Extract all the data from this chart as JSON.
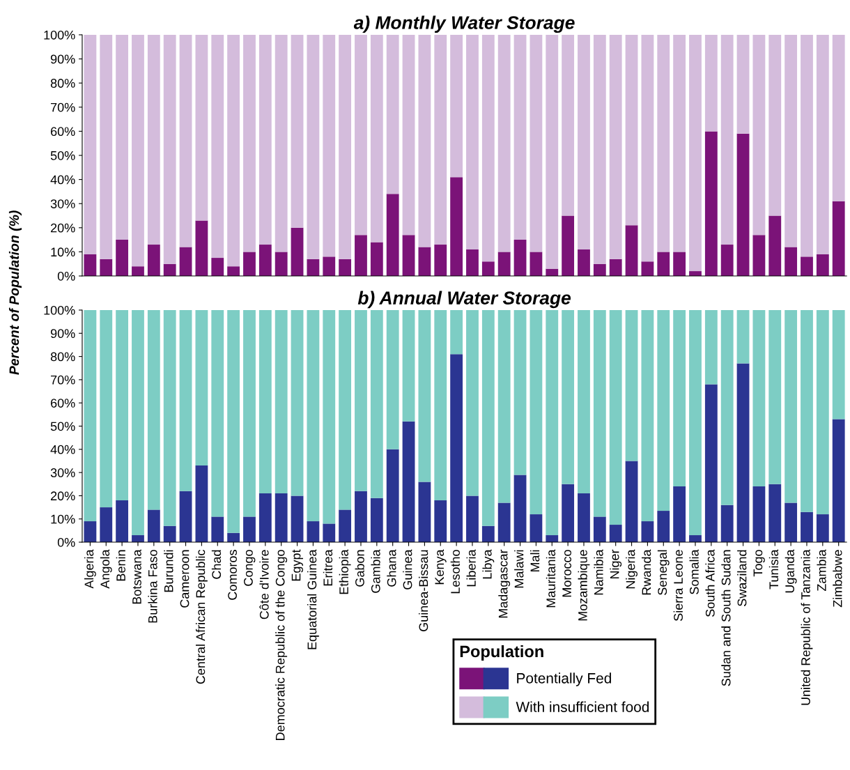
{
  "chart_data": [
    {
      "type": "bar",
      "stacked": true,
      "title": "a) Monthly Water Storage",
      "ylabel": "Percent of Population (%)",
      "tick_labels": "y",
      "legend": "bottom",
      "legend_title": "Population",
      "categories": [
        null,
        null,
        null,
        null,
        null,
        null,
        null,
        null,
        null,
        null,
        null,
        null,
        null,
        null,
        null,
        null,
        null,
        null,
        null,
        null,
        null,
        null,
        null,
        null,
        null,
        null,
        null,
        null,
        null,
        null,
        null,
        null,
        null,
        null,
        null,
        null,
        null,
        null,
        null,
        null,
        null,
        null,
        null,
        null,
        null,
        null,
        null,
        null
      ],
      "series": [
        {
          "name": "Potentially Fed",
          "color": "#7b1378",
          "values": [
            9,
            7,
            15,
            4,
            13,
            5,
            12,
            23,
            7.5,
            4,
            10,
            13,
            10,
            20,
            7,
            8,
            7,
            17,
            14,
            34,
            17,
            12,
            13,
            41,
            11,
            6,
            10,
            15,
            10,
            3,
            25,
            11,
            5,
            7,
            21,
            6,
            10,
            10,
            2,
            60,
            13,
            59,
            17,
            25,
            12,
            8,
            9,
            31
          ]
        },
        {
          "name": "With insufficient food",
          "color": "#d4bcdc",
          "values": [
            91,
            93,
            85,
            96,
            87,
            95,
            88,
            77,
            92.5,
            96,
            90,
            87,
            90,
            80,
            93,
            92,
            93,
            83,
            86,
            66,
            83,
            88,
            87,
            59,
            89,
            94,
            90,
            85,
            90,
            97,
            75,
            89,
            95,
            93,
            79,
            94,
            90,
            90,
            98,
            40,
            87,
            41,
            83,
            75,
            88,
            92,
            91,
            69
          ]
        }
      ],
      "ylim": [
        0,
        100
      ],
      "yticks": [
        {
          "value": 0,
          "label": "0%"
        },
        {
          "value": 10,
          "label": "10%"
        },
        {
          "value": 20,
          "label": "20%"
        },
        {
          "value": 30,
          "label": "30%"
        },
        {
          "value": 40,
          "label": "40%"
        },
        {
          "value": 50,
          "label": "50%"
        },
        {
          "value": 60,
          "label": "60%"
        },
        {
          "value": 70,
          "label": "70%"
        },
        {
          "value": 80,
          "label": "80%"
        },
        {
          "value": 90,
          "label": "90%"
        },
        {
          "value": 100,
          "label": "100%"
        }
      ]
    },
    {
      "type": "bar",
      "stacked": true,
      "title": "b) Annual Water Storage",
      "categories": [
        "Algeria",
        "Angola",
        "Benin",
        "Botswana",
        "Burkina Faso",
        "Burundi",
        "Cameroon",
        "Central African Republic",
        "Chad",
        "Comoros",
        "Congo",
        "Côte d'Ivoire",
        "Democratic Republic of the Congo",
        "Egypt",
        "Equatorial Guinea",
        "Eritrea",
        "Ethiopia",
        "Gabon",
        "Gambia",
        "Ghana",
        "Guinea",
        "Guinea-Bissau",
        "Kenya",
        "Lesotho",
        "Liberia",
        "Libya",
        "Madagascar",
        "Malawi",
        "Mali",
        "Mauritania",
        "Morocco",
        "Mozambique",
        "Namibia",
        "Niger",
        "Nigeria",
        "Rwanda",
        "Senegal",
        "Sierra Leone",
        "Somalia",
        "South Africa",
        "Sudan and South Sudan",
        "Swaziland",
        "Togo",
        "Tunisia",
        "Uganda",
        "United Republic of Tanzania",
        "Zambia",
        "Zimbabwe"
      ],
      "series": [
        {
          "color": "#2b3592",
          "values": [
            9,
            15,
            18,
            3,
            14,
            7,
            22,
            33,
            11,
            4,
            11,
            21,
            21,
            20,
            9,
            8,
            14,
            22,
            19,
            40,
            52,
            26,
            18,
            81,
            20,
            7,
            17,
            29,
            12,
            3,
            25,
            21,
            11,
            7.5,
            35,
            9,
            13.5,
            24,
            3,
            68,
            16,
            77,
            24,
            25,
            17,
            13,
            12,
            53
          ]
        },
        {
          "color": "#7dcdc4",
          "values": [
            91,
            85,
            82,
            97,
            86,
            93,
            78,
            67,
            89,
            96,
            89,
            79,
            79,
            80,
            91,
            92,
            86,
            78,
            81,
            60,
            48,
            74,
            82,
            19,
            80,
            93,
            83,
            71,
            88,
            97,
            75,
            79,
            89,
            92.5,
            65,
            91,
            86.5,
            76,
            97,
            32,
            84,
            23,
            76,
            75,
            83,
            87,
            88,
            47
          ]
        }
      ],
      "ylim": [
        0,
        100
      ],
      "yticks": [
        {
          "value": 0,
          "label": "0%"
        },
        {
          "value": 10,
          "label": "10%"
        },
        {
          "value": 20,
          "label": "20%"
        },
        {
          "value": 30,
          "label": "30%"
        },
        {
          "value": 40,
          "label": "40%"
        },
        {
          "value": 50,
          "label": "50%"
        },
        {
          "value": 60,
          "label": "60%"
        },
        {
          "value": 70,
          "label": "70%"
        },
        {
          "value": 80,
          "label": "80%"
        },
        {
          "value": 90,
          "label": "90%"
        },
        {
          "value": 100,
          "label": "100%"
        }
      ]
    }
  ]
}
